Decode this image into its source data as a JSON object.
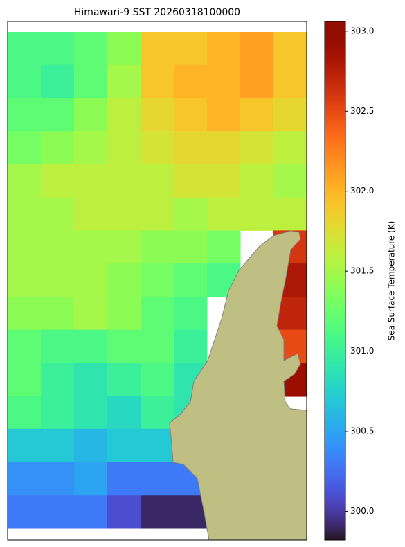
{
  "chart_data": {
    "type": "heatmap",
    "title": "Himawari-9 SST 20260318100000",
    "colorbar_label": "Sea Surface Temperature (K)",
    "colormap": "turbo",
    "clim": [
      299.82,
      303.06
    ],
    "cticks": [
      {
        "value": 300,
        "label": "300.0"
      },
      300.5,
      {
        "value": 301,
        "label": "301.0"
      },
      301.5,
      {
        "value": 302,
        "label": "302.0"
      },
      302.5,
      {
        "value": 303,
        "label": "303.0"
      }
    ],
    "values": [
      [
        301.1,
        301.1,
        301.2,
        301.4,
        301.9,
        301.9,
        302.0,
        302.1,
        301.9
      ],
      [
        301.1,
        301.0,
        301.2,
        301.5,
        301.9,
        302.0,
        302.0,
        302.1,
        301.9
      ],
      [
        301.2,
        301.2,
        301.4,
        301.6,
        301.8,
        301.9,
        302.0,
        301.9,
        301.8
      ],
      [
        301.3,
        301.4,
        301.5,
        301.6,
        301.7,
        301.8,
        301.8,
        301.7,
        301.6
      ],
      [
        301.5,
        301.6,
        301.6,
        301.6,
        301.6,
        301.7,
        301.7,
        301.6,
        301.5
      ],
      [
        301.5,
        301.5,
        301.6,
        301.6,
        301.6,
        301.5,
        301.6,
        301.6,
        301.6
      ],
      [
        301.5,
        301.5,
        301.5,
        301.5,
        301.4,
        301.4,
        301.3,
        null,
        302.6
      ],
      [
        301.5,
        301.5,
        301.5,
        301.4,
        301.3,
        301.2,
        301.1,
        null,
        302.8
      ],
      [
        301.4,
        301.4,
        301.5,
        301.4,
        301.2,
        301.1,
        null,
        null,
        302.7
      ],
      [
        301.2,
        301.1,
        301.1,
        301.2,
        301.2,
        301.0,
        null,
        null,
        302.5
      ],
      [
        301.2,
        301.0,
        300.9,
        301.0,
        301.1,
        300.9,
        null,
        null,
        302.9
      ],
      [
        301.1,
        301.0,
        300.9,
        300.8,
        301.0,
        300.9,
        null,
        null,
        null
      ],
      [
        300.7,
        300.7,
        300.6,
        300.7,
        300.7,
        null,
        null,
        null,
        null
      ],
      [
        300.4,
        300.4,
        300.5,
        300.3,
        300.3,
        300.3,
        null,
        null,
        null
      ],
      [
        300.3,
        300.3,
        300.3,
        300.1,
        299.9,
        299.9,
        null,
        null,
        null
      ]
    ]
  }
}
